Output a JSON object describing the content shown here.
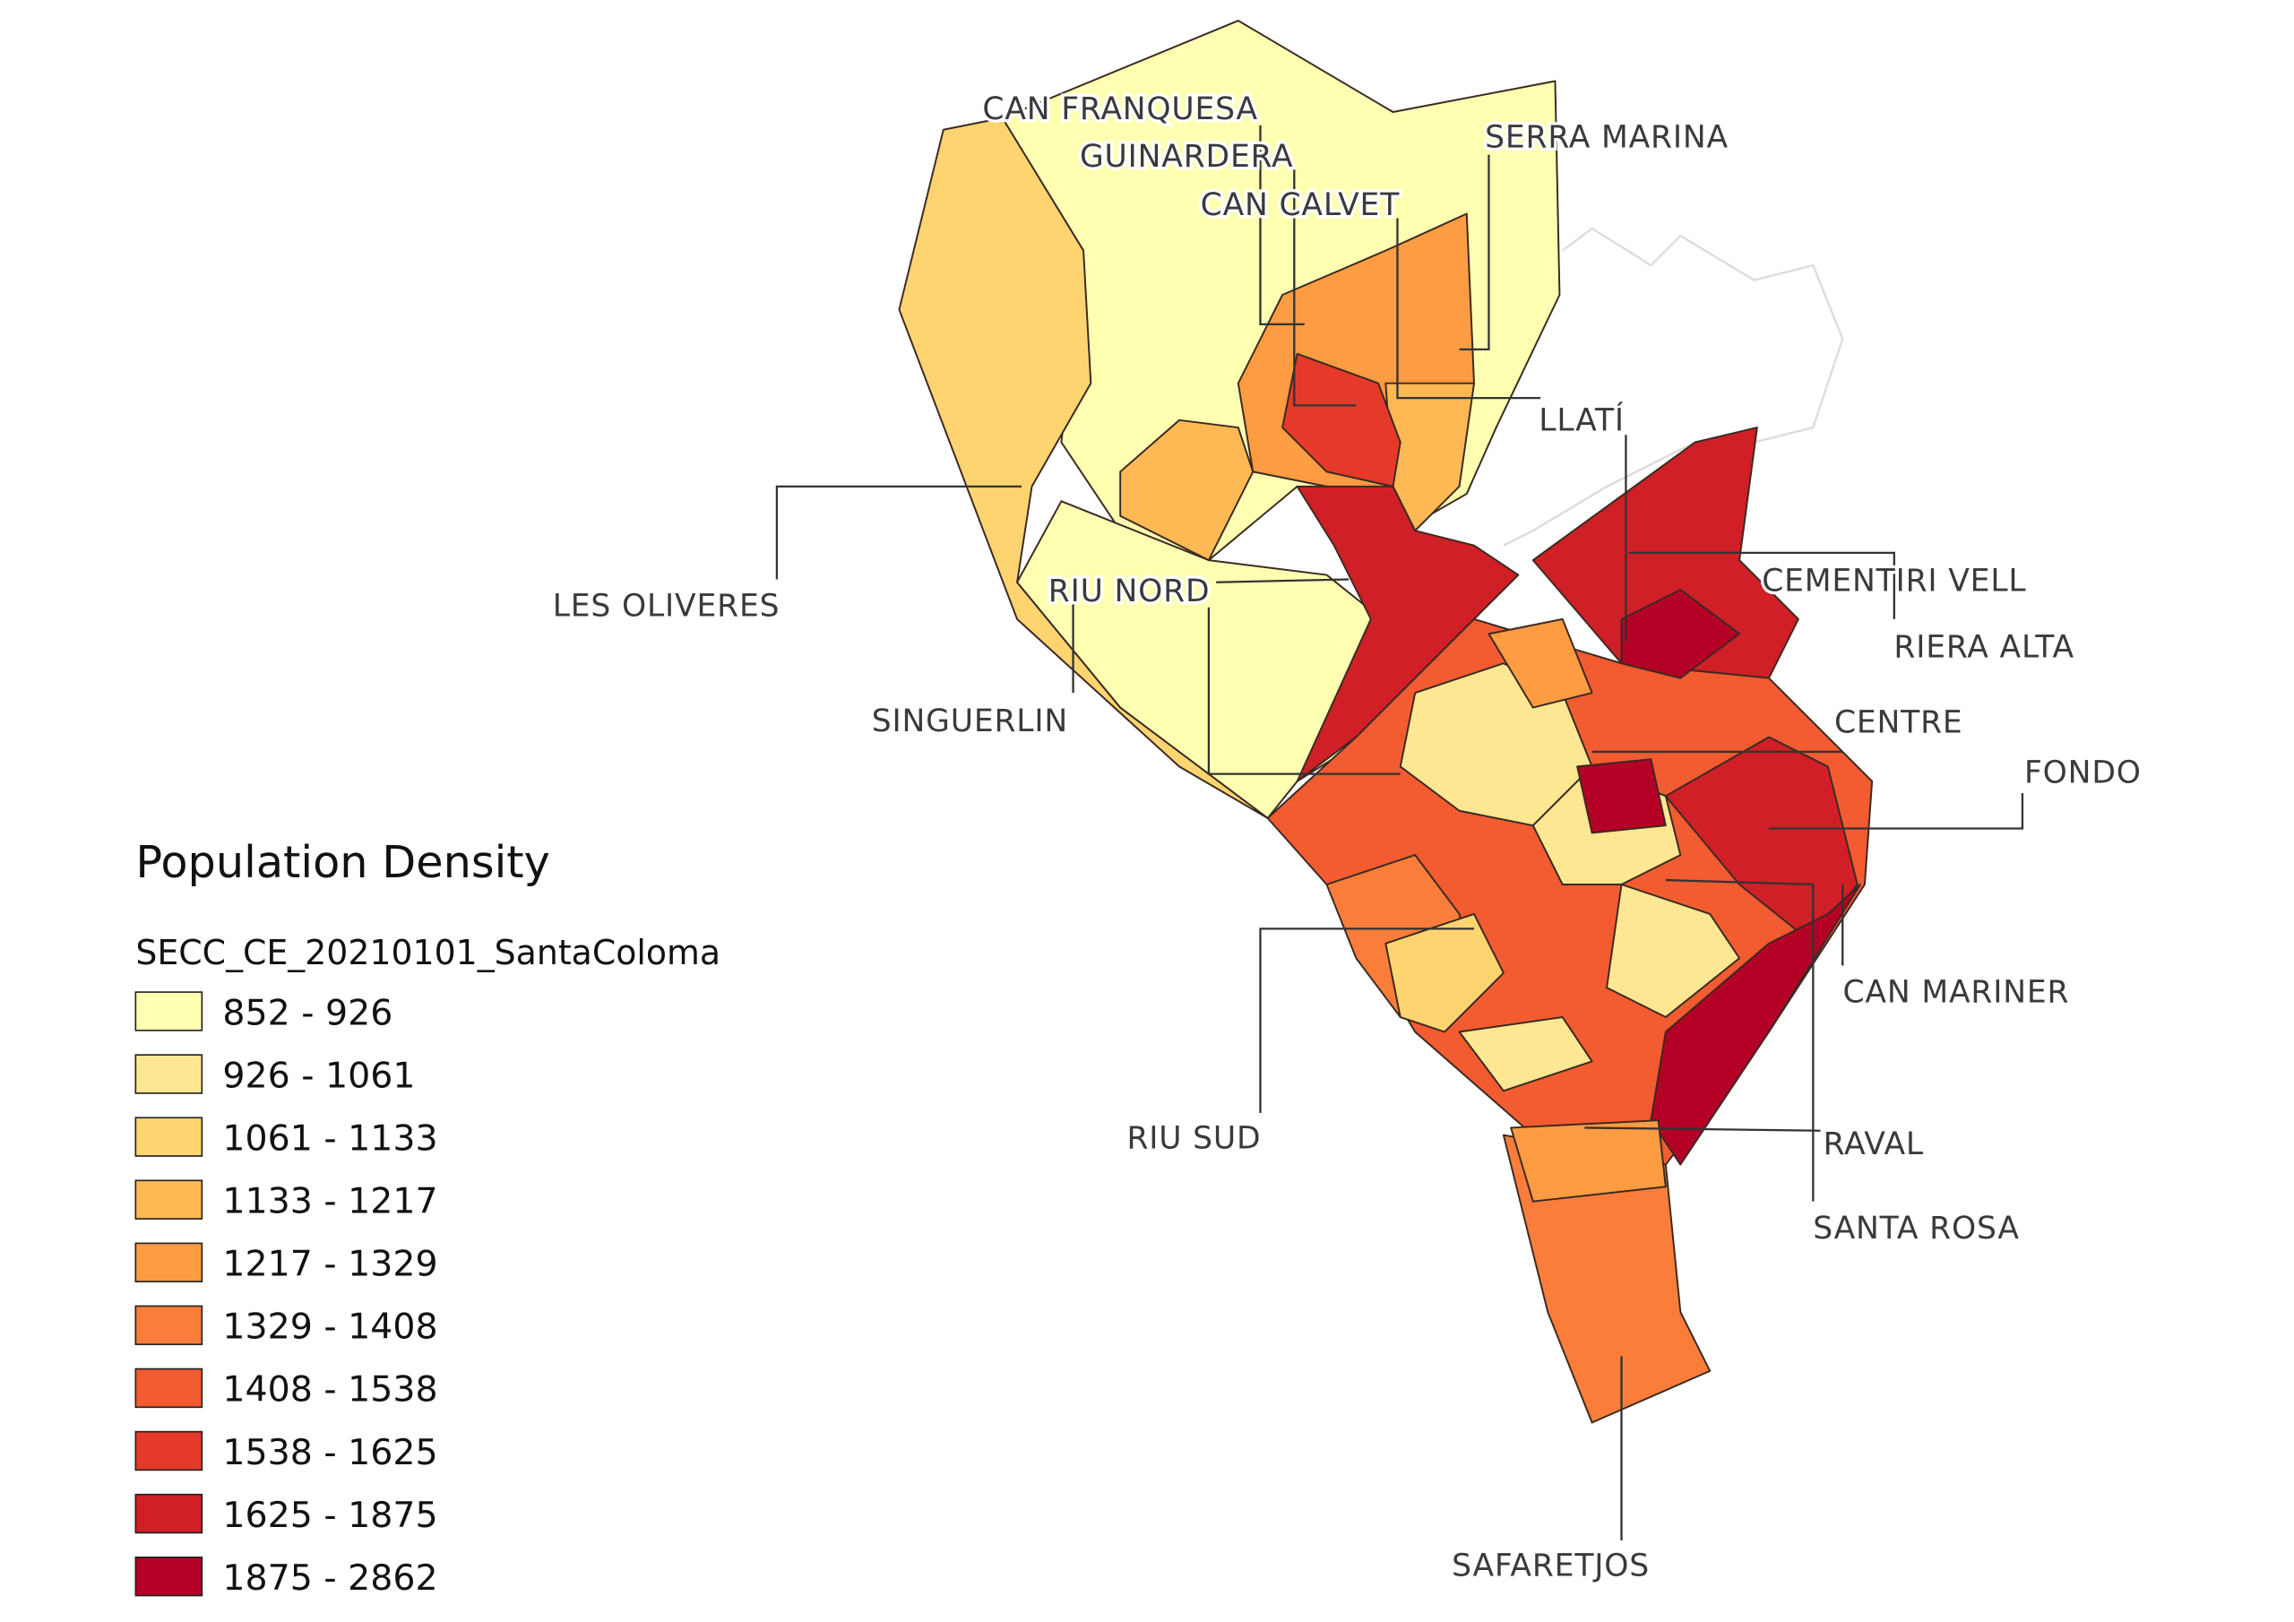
{
  "legend": {
    "title": "Population Density",
    "subtitle": "SECC_CE_20210101_SantaColoma",
    "items": [
      {
        "label": "852 - 926",
        "color": "#ffffb2"
      },
      {
        "label": "926 - 1061",
        "color": "#fee792"
      },
      {
        "label": "1061 - 1133",
        "color": "#fed471"
      },
      {
        "label": "1133 - 1217",
        "color": "#feb954"
      },
      {
        "label": "1217 - 1329",
        "color": "#fd9c42"
      },
      {
        "label": "1329 - 1408",
        "color": "#fa7e3a"
      },
      {
        "label": "1408 - 1538",
        "color": "#f35b31"
      },
      {
        "label": "1538 - 1625",
        "color": "#e53a29"
      },
      {
        "label": "1625 - 1875",
        "color": "#d01f26"
      },
      {
        "label": "1875 - 2862",
        "color": "#b50026"
      }
    ]
  },
  "places": [
    "CAN FRANQUESA",
    "GUINARDERA",
    "CAN CALVET",
    "SERRA MARINA",
    "LLATÍ",
    "LES OLIVERES",
    "RIU NORD",
    "SINGUERLIN",
    "CEMENTIRI VELL",
    "RIERA ALTA",
    "CENTRE",
    "FONDO",
    "CAN MARINER",
    "RIU SUD",
    "RAVAL",
    "SANTA ROSA",
    "SAFARETJOS"
  ]
}
